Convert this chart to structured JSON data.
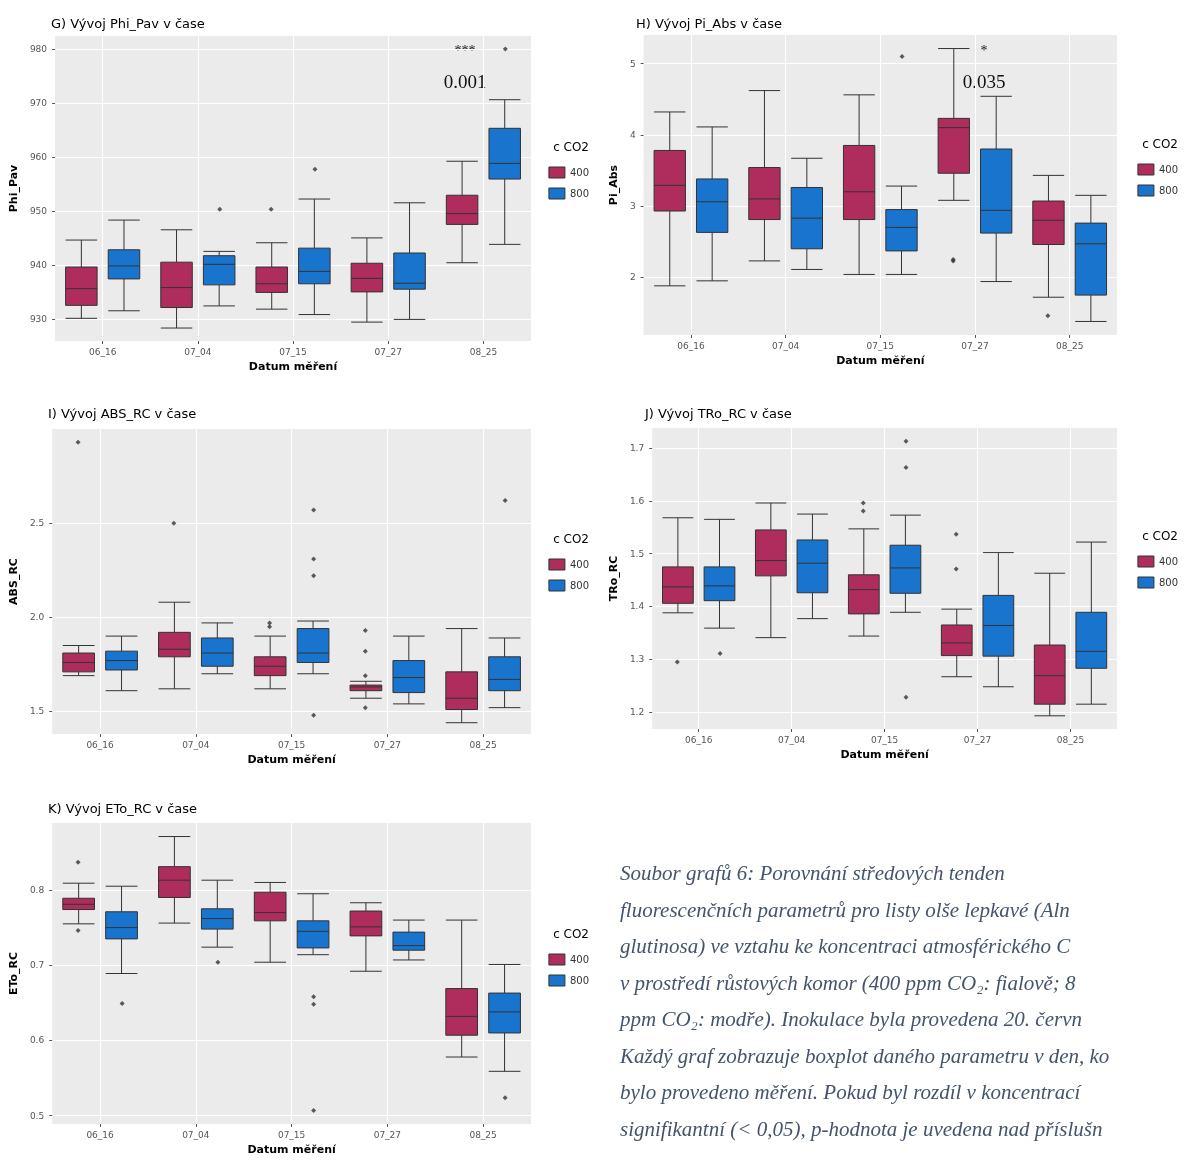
{
  "chart_data": [
    {
      "type": "box",
      "title": "G) Vývoj Phi_Pav v čase",
      "xlabel": "Datum měření",
      "ylabel": "Phi_Pav",
      "legend_title": "c CO2",
      "legend": "right",
      "grid": true,
      "categories": [
        "06_16",
        "07_04",
        "07_15",
        "07_27",
        "08_25"
      ],
      "ylim": [
        926,
        982.5
      ],
      "yticks": [
        930,
        940,
        950,
        960,
        970,
        980
      ],
      "series": [
        {
          "name": "400",
          "color": "#ae2d5c",
          "boxes": [
            {
              "low": 930.2,
              "q1": 932.6,
              "median": 935.7,
              "q3": 939.7,
              "high": 944.7
            },
            {
              "low": 928.4,
              "q1": 932.2,
              "median": 935.9,
              "q3": 940.6,
              "high": 946.6
            },
            {
              "low": 931.9,
              "q1": 935.0,
              "median": 936.6,
              "q3": 939.7,
              "high": 944.2,
              "outliers": [
                950.4
              ]
            },
            {
              "low": 929.5,
              "q1": 935.1,
              "median": 937.6,
              "q3": 940.4,
              "high": 945.1
            },
            {
              "low": 940.5,
              "q1": 947.6,
              "median": 949.6,
              "q3": 953.0,
              "high": 959.3
            }
          ]
        },
        {
          "name": "800",
          "color": "#1874cd",
          "boxes": [
            {
              "low": 931.6,
              "q1": 937.5,
              "median": 939.9,
              "q3": 942.9,
              "high": 948.4
            },
            {
              "low": 932.5,
              "q1": 936.4,
              "median": 940.2,
              "q3": 941.8,
              "high": 942.6,
              "outliers": [
                950.4
              ]
            },
            {
              "low": 930.9,
              "q1": 936.6,
              "median": 938.9,
              "q3": 943.2,
              "high": 952.3,
              "outliers": [
                957.8
              ]
            },
            {
              "low": 930.0,
              "q1": 935.6,
              "median": 936.7,
              "q3": 942.3,
              "high": 951.6
            },
            {
              "low": 943.9,
              "q1": 956.0,
              "median": 958.9,
              "q3": 965.4,
              "high": 970.7,
              "outliers": [
                980.1
              ]
            }
          ]
        }
      ],
      "annotations": [
        "***",
        "0.001"
      ]
    },
    {
      "type": "box",
      "title": "H) Vývoj Pi_Abs v čase",
      "xlabel": "Datum měření",
      "ylabel": "Pi_Abs",
      "legend_title": "c CO2",
      "legend": "right",
      "grid": true,
      "categories": [
        "06_16",
        "07_04",
        "07_15",
        "07_27",
        "08_25"
      ],
      "ylim": [
        1.19,
        5.4
      ],
      "yticks": [
        2,
        3,
        4,
        5
      ],
      "series": [
        {
          "name": "400",
          "color": "#ae2d5c",
          "boxes": [
            {
              "low": 1.88,
              "q1": 2.93,
              "median": 3.29,
              "q3": 3.78,
              "high": 4.32
            },
            {
              "low": 2.23,
              "q1": 2.81,
              "median": 3.1,
              "q3": 3.54,
              "high": 4.62
            },
            {
              "low": 2.04,
              "q1": 2.81,
              "median": 3.2,
              "q3": 3.85,
              "high": 4.56
            },
            {
              "low": 3.08,
              "q1": 3.46,
              "median": 4.1,
              "q3": 4.23,
              "high": 5.21,
              "outliers": [
                2.23,
                2.25
              ]
            },
            {
              "low": 1.72,
              "q1": 2.46,
              "median": 2.8,
              "q3": 3.07,
              "high": 3.43,
              "outliers": [
                1.46
              ]
            }
          ]
        },
        {
          "name": "800",
          "color": "#1874cd",
          "boxes": [
            {
              "low": 1.95,
              "q1": 2.63,
              "median": 3.06,
              "q3": 3.38,
              "high": 4.11
            },
            {
              "low": 2.11,
              "q1": 2.4,
              "median": 2.83,
              "q3": 3.26,
              "high": 3.67
            },
            {
              "low": 2.04,
              "q1": 2.37,
              "median": 2.7,
              "q3": 2.95,
              "high": 3.28,
              "outliers": [
                5.1
              ]
            },
            {
              "low": 1.94,
              "q1": 2.62,
              "median": 2.94,
              "q3": 3.8,
              "high": 4.54
            },
            {
              "low": 1.38,
              "q1": 1.75,
              "median": 2.47,
              "q3": 2.76,
              "high": 3.15
            }
          ]
        }
      ],
      "annotations": [
        "*",
        "0.035"
      ]
    },
    {
      "type": "box",
      "title": "I) Vývoj ABS_RC v čase",
      "xlabel": "Datum měření",
      "ylabel": "ABS_RC",
      "legend_title": "c CO2",
      "legend": "right",
      "grid": true,
      "categories": [
        "06_16",
        "07_04",
        "07_15",
        "07_27",
        "08_25"
      ],
      "ylim": [
        1.38,
        3.0
      ],
      "yticks": [
        1.5,
        {
          "value": 2,
          "label": "2.0"
        },
        2.5
      ],
      "series": [
        {
          "name": "400",
          "color": "#ae2d5c",
          "boxes": [
            {
              "low": 1.69,
              "q1": 1.71,
              "median": 1.76,
              "q3": 1.81,
              "high": 1.85,
              "outliers": [
                2.93
              ]
            },
            {
              "low": 1.62,
              "q1": 1.79,
              "median": 1.83,
              "q3": 1.92,
              "high": 2.08,
              "outliers": [
                2.5
              ]
            },
            {
              "low": 1.62,
              "q1": 1.69,
              "median": 1.74,
              "q3": 1.79,
              "high": 1.9,
              "outliers": [
                1.95,
                1.97
              ]
            },
            {
              "low": 1.57,
              "q1": 1.61,
              "median": 1.63,
              "q3": 1.64,
              "high": 1.66,
              "outliers": [
                1.93,
                1.82,
                1.69,
                1.52
              ]
            },
            {
              "low": 1.44,
              "q1": 1.51,
              "median": 1.57,
              "q3": 1.71,
              "high": 1.94
            }
          ]
        },
        {
          "name": "800",
          "color": "#1874cd",
          "boxes": [
            {
              "low": 1.61,
              "q1": 1.72,
              "median": 1.77,
              "q3": 1.82,
              "high": 1.9
            },
            {
              "low": 1.7,
              "q1": 1.74,
              "median": 1.81,
              "q3": 1.89,
              "high": 1.97
            },
            {
              "low": 1.7,
              "q1": 1.76,
              "median": 1.81,
              "q3": 1.94,
              "high": 1.98,
              "outliers": [
                2.57,
                2.31,
                2.22,
                1.48
              ]
            },
            {
              "low": 1.54,
              "q1": 1.6,
              "median": 1.68,
              "q3": 1.77,
              "high": 1.9
            },
            {
              "low": 1.52,
              "q1": 1.61,
              "median": 1.67,
              "q3": 1.79,
              "high": 1.89,
              "outliers": [
                2.62
              ]
            }
          ]
        }
      ]
    },
    {
      "type": "box",
      "title": "J) Vývoj TRo_RC v čase",
      "xlabel": "Datum měření",
      "ylabel": "TRo_RC",
      "legend_title": "c CO2",
      "legend": "right",
      "grid": true,
      "categories": [
        "06_16",
        "07_04",
        "07_15",
        "07_27",
        "08_25"
      ],
      "ylim": [
        1.168,
        1.738
      ],
      "yticks": [
        1.2,
        1.3,
        1.4,
        1.5,
        1.6,
        1.7
      ],
      "series": [
        {
          "name": "400",
          "color": "#ae2d5c",
          "boxes": [
            {
              "low": 1.388,
              "q1": 1.406,
              "median": 1.437,
              "q3": 1.475,
              "high": 1.568,
              "outliers": [
                1.295
              ]
            },
            {
              "low": 1.341,
              "q1": 1.458,
              "median": 1.487,
              "q3": 1.545,
              "high": 1.596
            },
            {
              "low": 1.344,
              "q1": 1.386,
              "median": 1.432,
              "q3": 1.46,
              "high": 1.547,
              "outliers": [
                1.596,
                1.581
              ]
            },
            {
              "low": 1.267,
              "q1": 1.307,
              "median": 1.331,
              "q3": 1.365,
              "high": 1.395,
              "outliers": [
                1.537,
                1.471
              ]
            },
            {
              "low": 1.193,
              "q1": 1.215,
              "median": 1.269,
              "q3": 1.327,
              "high": 1.463
            }
          ]
        },
        {
          "name": "800",
          "color": "#1874cd",
          "boxes": [
            {
              "low": 1.359,
              "q1": 1.411,
              "median": 1.439,
              "q3": 1.475,
              "high": 1.565,
              "outliers": [
                1.311
              ]
            },
            {
              "low": 1.377,
              "q1": 1.426,
              "median": 1.482,
              "q3": 1.526,
              "high": 1.575
            },
            {
              "low": 1.389,
              "q1": 1.425,
              "median": 1.473,
              "q3": 1.516,
              "high": 1.573,
              "outliers": [
                1.713,
                1.663,
                1.228
              ]
            },
            {
              "low": 1.248,
              "q1": 1.306,
              "median": 1.364,
              "q3": 1.421,
              "high": 1.502
            },
            {
              "low": 1.215,
              "q1": 1.283,
              "median": 1.315,
              "q3": 1.389,
              "high": 1.522
            }
          ]
        }
      ]
    },
    {
      "type": "box",
      "title": "K) Vývoj ETo_RC v čase",
      "xlabel": "Datum měření",
      "ylabel": "ETo_RC",
      "legend_title": "c CO2",
      "legend": "right",
      "grid": true,
      "categories": [
        "06_16",
        "07_04",
        "07_15",
        "07_27",
        "08_25"
      ],
      "ylim": [
        0.489,
        0.889
      ],
      "yticks": [
        0.5,
        0.6,
        0.7,
        0.8
      ],
      "series": [
        {
          "name": "400",
          "color": "#ae2d5c",
          "boxes": [
            {
              "low": 0.755,
              "q1": 0.774,
              "median": 0.781,
              "q3": 0.789,
              "high": 0.809,
              "outliers": [
                0.837,
                0.746
              ]
            },
            {
              "low": 0.756,
              "q1": 0.79,
              "median": 0.813,
              "q3": 0.831,
              "high": 0.871
            },
            {
              "low": 0.704,
              "q1": 0.759,
              "median": 0.77,
              "q3": 0.797,
              "high": 0.81
            },
            {
              "low": 0.692,
              "q1": 0.739,
              "median": 0.751,
              "q3": 0.772,
              "high": 0.783
            },
            {
              "low": 0.578,
              "q1": 0.607,
              "median": 0.632,
              "q3": 0.669,
              "high": 0.76
            }
          ]
        },
        {
          "name": "800",
          "color": "#1874cd",
          "boxes": [
            {
              "low": 0.689,
              "q1": 0.735,
              "median": 0.75,
              "q3": 0.771,
              "high": 0.805,
              "outliers": [
                0.649
              ]
            },
            {
              "low": 0.724,
              "q1": 0.748,
              "median": 0.762,
              "q3": 0.775,
              "high": 0.813,
              "outliers": [
                0.704
              ]
            },
            {
              "low": 0.714,
              "q1": 0.723,
              "median": 0.745,
              "q3": 0.759,
              "high": 0.795,
              "outliers": [
                0.658,
                0.648,
                0.507
              ]
            },
            {
              "low": 0.707,
              "q1": 0.72,
              "median": 0.726,
              "q3": 0.744,
              "high": 0.76
            },
            {
              "low": 0.559,
              "q1": 0.61,
              "median": 0.638,
              "q3": 0.663,
              "high": 0.701,
              "outliers": [
                0.524
              ]
            }
          ]
        }
      ]
    },
    {
      "type": "other",
      "annotations": [
        "Soubor grafů 6: Porovnání středových tenden",
        "fluorescenčních parametrů pro listy olše lepkavé (Aln",
        "glutinosa) ve vztahu ke koncentraci atmosférického C",
        "v prostředí růstových komor (400 ppm CO₂: fialově; 8",
        "ppm CO₂: modře). Inokulace byla provedena 20. červn",
        "Každý graf zobrazuje boxplot daného parametru v den, ko",
        "bylo provedeno měření. Pokud byl rozdíl v koncentrací",
        "signifikantní (< 0,05), p-hodnota je uvedena nad příslušn"
      ]
    }
  ]
}
